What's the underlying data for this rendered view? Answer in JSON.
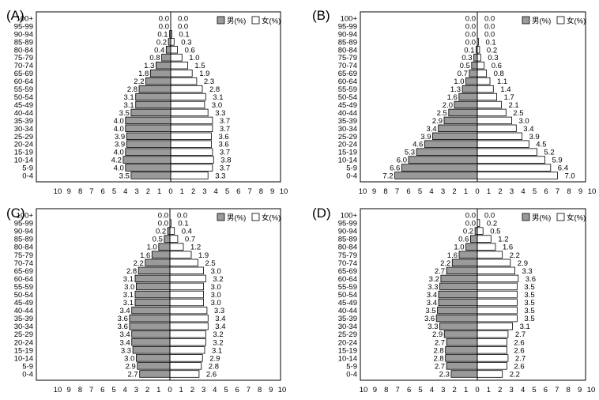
{
  "age_groups": [
    "0-4",
    "5-9",
    "10-14",
    "15-19",
    "20-24",
    "25-29",
    "30-34",
    "35-39",
    "40-44",
    "45-49",
    "50-54",
    "55-59",
    "60-64",
    "65-69",
    "70-74",
    "75-79",
    "80-84",
    "85-89",
    "90-94",
    "95-99",
    "100+"
  ],
  "legend": {
    "male": "男(%)",
    "female": "女(%)"
  },
  "colors": {
    "male": "#9a9a9a",
    "female": "#ffffff",
    "stroke": "#000000"
  },
  "axis_ticks": [
    "10",
    "9",
    "8",
    "7",
    "6",
    "5",
    "4",
    "3",
    "2",
    "1",
    "0",
    "1",
    "2",
    "3",
    "4",
    "5",
    "6",
    "7",
    "8",
    "9",
    "10"
  ],
  "chart_data": [
    {
      "type": "bar",
      "panel_label": "(A)",
      "xlim": [
        -10,
        10
      ],
      "male": [
        3.5,
        4.0,
        4.2,
        4.0,
        3.9,
        3.9,
        4.0,
        4.0,
        3.5,
        3.1,
        3.1,
        2.8,
        2.2,
        1.8,
        1.3,
        0.8,
        0.4,
        0.2,
        0.1,
        0.0,
        0.0
      ],
      "female": [
        3.3,
        3.7,
        3.8,
        3.7,
        3.6,
        3.6,
        3.7,
        3.7,
        3.3,
        3.0,
        3.1,
        2.8,
        2.3,
        1.9,
        1.5,
        1.0,
        0.6,
        0.3,
        0.1,
        0.0,
        0.0
      ]
    },
    {
      "type": "bar",
      "panel_label": "(B)",
      "xlim": [
        -10,
        10
      ],
      "male": [
        7.2,
        6.6,
        6.0,
        5.3,
        4.6,
        3.9,
        3.4,
        2.9,
        2.5,
        2.0,
        1.6,
        1.3,
        1.0,
        0.7,
        0.5,
        0.3,
        0.1,
        0.0,
        0.0,
        0.0,
        0.0
      ],
      "female": [
        7.0,
        6.4,
        5.9,
        5.2,
        4.5,
        3.9,
        3.4,
        3.0,
        2.5,
        2.1,
        1.7,
        1.4,
        1.1,
        0.8,
        0.6,
        0.3,
        0.2,
        0.1,
        0.0,
        0.0,
        0.0
      ]
    },
    {
      "type": "bar",
      "panel_label": "(C)",
      "xlim": [
        -10,
        10
      ],
      "male": [
        2.7,
        2.9,
        3.0,
        3.3,
        3.4,
        3.4,
        3.6,
        3.6,
        3.4,
        3.1,
        3.1,
        3.0,
        3.1,
        2.8,
        2.2,
        1.6,
        1.0,
        0.5,
        0.2,
        0.0,
        0.0
      ],
      "female": [
        2.6,
        2.8,
        2.9,
        3.1,
        3.2,
        3.2,
        3.4,
        3.4,
        3.3,
        3.0,
        3.0,
        3.0,
        3.2,
        3.0,
        2.5,
        1.9,
        1.2,
        0.7,
        0.4,
        0.1,
        0.0
      ]
    },
    {
      "type": "bar",
      "panel_label": "(D)",
      "xlim": [
        -10,
        10
      ],
      "male": [
        2.3,
        2.7,
        2.8,
        2.8,
        2.7,
        2.9,
        3.3,
        3.6,
        3.5,
        3.4,
        3.4,
        3.3,
        3.2,
        2.7,
        2.2,
        1.6,
        1.0,
        0.6,
        0.2,
        0.0,
        0.0
      ],
      "female": [
        2.2,
        2.6,
        2.7,
        2.6,
        2.6,
        2.7,
        3.1,
        3.5,
        3.5,
        3.5,
        3.5,
        3.5,
        3.6,
        3.3,
        2.9,
        2.2,
        1.6,
        1.2,
        0.5,
        0.2,
        0.0
      ]
    }
  ]
}
